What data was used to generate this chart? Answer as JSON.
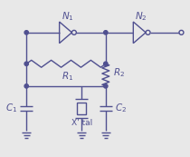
{
  "bg_color": "#e8e8e8",
  "line_color": "#505090",
  "dot_color": "#505090",
  "text_color": "#505090",
  "fig_width": 2.1,
  "fig_height": 1.73,
  "dpi": 100
}
